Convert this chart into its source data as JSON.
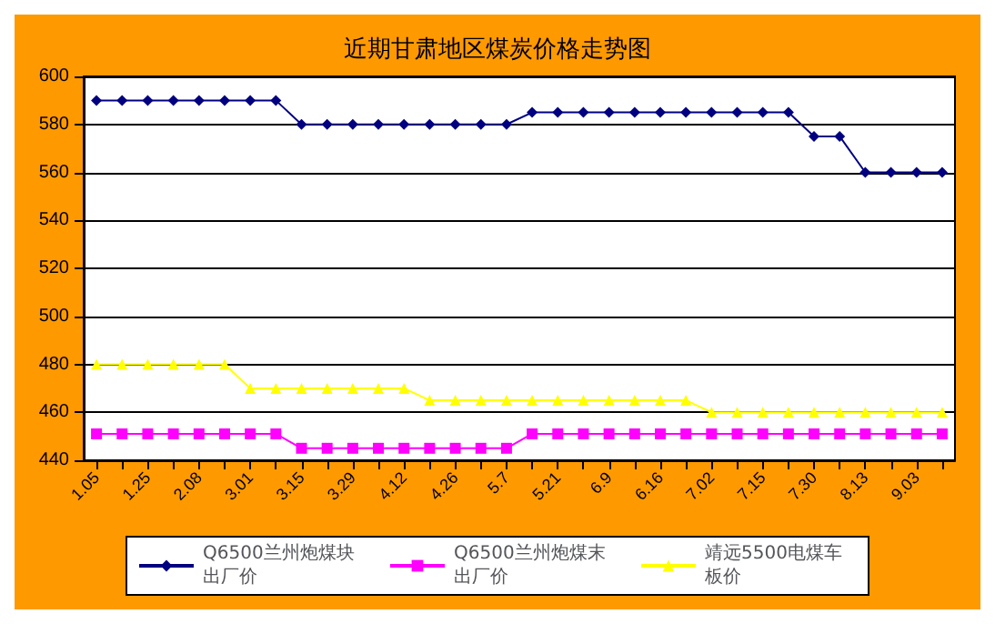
{
  "chart_data": {
    "type": "line",
    "title": "近期甘肃地区煤炭价格走势图",
    "categories": [
      "1.05",
      null,
      "1.25",
      null,
      "2.08",
      null,
      "3.01",
      null,
      "3.15",
      null,
      "3.29",
      null,
      "4.12",
      null,
      "4.26",
      null,
      "5.7",
      null,
      "5.21",
      null,
      "6.9",
      null,
      "6.16",
      null,
      "7.02",
      null,
      "7.15",
      null,
      "7.30",
      null,
      "8.13",
      null,
      "9.03",
      null
    ],
    "series": [
      {
        "name": "Q6500兰州炮煤块出厂价",
        "color": "#000080",
        "marker": "diamond",
        "values": [
          590,
          590,
          590,
          590,
          590,
          590,
          590,
          590,
          580,
          580,
          580,
          580,
          580,
          580,
          580,
          580,
          580,
          585,
          585,
          585,
          585,
          585,
          585,
          585,
          585,
          585,
          585,
          585,
          575,
          575,
          560,
          560,
          560,
          560
        ]
      },
      {
        "name": "Q6500兰州炮煤末出厂价",
        "color": "#ff00ff",
        "marker": "square",
        "values": [
          451,
          451,
          451,
          451,
          451,
          451,
          451,
          451,
          445,
          445,
          445,
          445,
          445,
          445,
          445,
          445,
          445,
          451,
          451,
          451,
          451,
          451,
          451,
          451,
          451,
          451,
          451,
          451,
          451,
          451,
          451,
          451,
          451,
          451
        ]
      },
      {
        "name": "靖远5500电煤车板价",
        "color": "#ffff00",
        "marker": "triangle",
        "values": [
          480,
          480,
          480,
          480,
          480,
          480,
          470,
          470,
          470,
          470,
          470,
          470,
          470,
          465,
          465,
          465,
          465,
          465,
          465,
          465,
          465,
          465,
          465,
          465,
          460,
          460,
          460,
          460,
          460,
          460,
          460,
          460,
          460,
          460
        ]
      }
    ],
    "ylim": [
      440,
      600
    ],
    "yticks": [
      440,
      460,
      480,
      500,
      520,
      540,
      560,
      580,
      600
    ],
    "grid": "y",
    "legend": "bottom",
    "line_style": "solid"
  }
}
